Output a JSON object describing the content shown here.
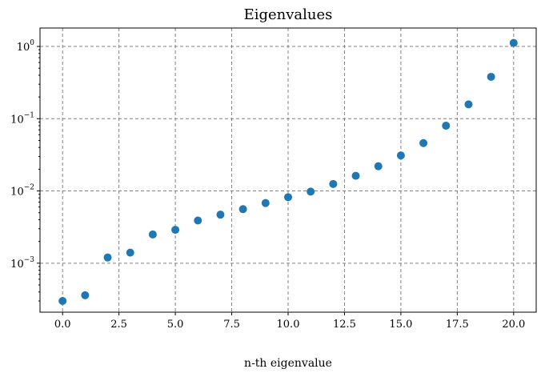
{
  "chart_data": {
    "type": "scatter",
    "title": "Eigenvalues",
    "xlabel": "n-th eigenvalue",
    "ylabel": "",
    "yscale": "log",
    "xlim": [
      -1.0,
      21.0
    ],
    "ylim": [
      0.00021,
      1.8
    ],
    "grid": true,
    "marker_color": "#1f77b4",
    "x_ticks": [
      0.0,
      2.5,
      5.0,
      7.5,
      10.0,
      12.5,
      15.0,
      17.5,
      20.0
    ],
    "x_tick_labels": [
      "0.0",
      "2.5",
      "5.0",
      "7.5",
      "10.0",
      "12.5",
      "15.0",
      "17.5",
      "20.0"
    ],
    "y_ticks": [
      0.001,
      0.01,
      0.1,
      1
    ],
    "y_tick_labels": [
      {
        "base": "10",
        "exp": "−3"
      },
      {
        "base": "10",
        "exp": "−2"
      },
      {
        "base": "10",
        "exp": "−1"
      },
      {
        "base": "10",
        "exp": "0"
      }
    ],
    "series": [
      {
        "x": [
          0,
          1,
          2,
          3,
          4,
          5,
          6,
          7,
          8,
          9,
          10,
          11,
          12,
          13,
          14,
          15,
          16,
          17,
          18,
          19,
          20
        ],
        "y": [
          0.0003,
          0.00036,
          0.0012,
          0.0014,
          0.0025,
          0.0029,
          0.0039,
          0.0047,
          0.0056,
          0.0068,
          0.0082,
          0.0098,
          0.0125,
          0.0162,
          0.022,
          0.031,
          0.046,
          0.08,
          0.158,
          0.38,
          1.12
        ]
      }
    ]
  }
}
